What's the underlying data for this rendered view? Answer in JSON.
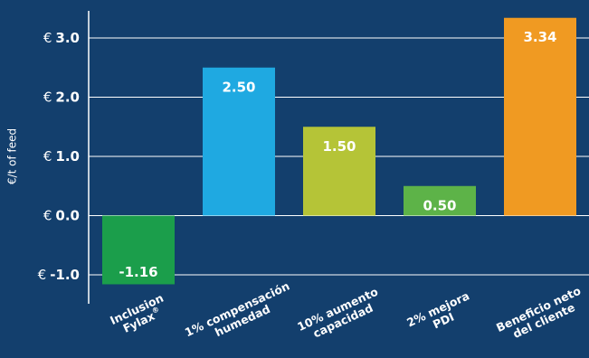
{
  "chart_data": {
    "type": "bar",
    "title": "",
    "xlabel": "",
    "ylabel": "€/t of feed",
    "ylim": [
      -1.2,
      3.4
    ],
    "yticks": [
      {
        "value": -1.0,
        "currency": "€",
        "label": "-1.0"
      },
      {
        "value": 0.0,
        "currency": "€",
        "label": "0.0"
      },
      {
        "value": 1.0,
        "currency": "€",
        "label": "1.0"
      },
      {
        "value": 2.0,
        "currency": "€",
        "label": "2.0"
      },
      {
        "value": 3.0,
        "currency": "€",
        "label": "3.0"
      }
    ],
    "grid": "horizontal",
    "categories": [
      {
        "line1": "Inclusion",
        "line2": "Fylax",
        "sup": "®"
      },
      {
        "line1": "1% compensación",
        "line2": "humedad",
        "sup": ""
      },
      {
        "line1": "10% aumento",
        "line2": "capacidad",
        "sup": ""
      },
      {
        "line1": "2% mejora",
        "line2": "PDI",
        "sup": ""
      },
      {
        "line1": "Beneficio neto",
        "line2": "del cliente",
        "sup": ""
      }
    ],
    "values": [
      -1.16,
      2.5,
      1.5,
      0.5,
      3.34
    ],
    "data_labels": [
      "-1.16",
      "2.50",
      "1.50",
      "0.50",
      "3.34"
    ],
    "colors": [
      "#1b9e4b",
      "#1fa9e1",
      "#b5c437",
      "#5db348",
      "#f09a22"
    ]
  }
}
